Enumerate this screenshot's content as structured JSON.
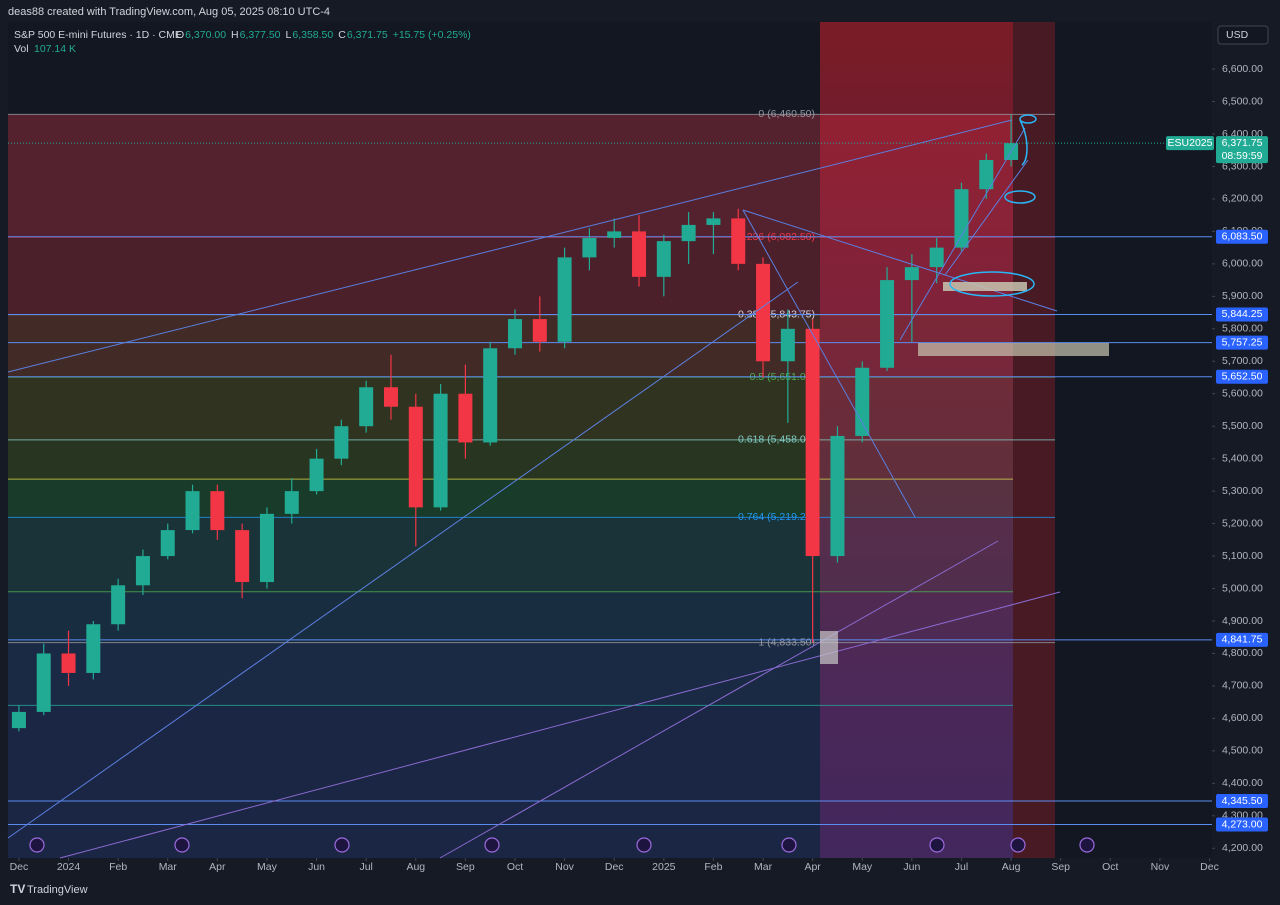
{
  "header": {
    "author_line": "deas88 created with TradingView.com, Aug 05, 2025 08:10 UTC-4",
    "currency": "USD",
    "footer": "TradingView"
  },
  "chart_data": {
    "type": "candlestick",
    "title": "S&P 500 E-mini Futures · 1D · CME",
    "ohlc_legend": [
      {
        "label": "O",
        "value": "6,370.00"
      },
      {
        "label": "H",
        "value": "6,377.50"
      },
      {
        "label": "L",
        "value": "6,358.50"
      },
      {
        "label": "C",
        "value": "6,371.75"
      }
    ],
    "change": "+15.75 (+0.25%)",
    "volume_label": "Vol",
    "volume_value": "107.14 K",
    "x": [
      0,
      0.5,
      1,
      1.5,
      2,
      2.5,
      3,
      3.5,
      4,
      4.5,
      5,
      5.5,
      6,
      6.5,
      7,
      7.5,
      8,
      8.5,
      9,
      9.5,
      10,
      10.5,
      11,
      11.5,
      12,
      12.5,
      13,
      13.5,
      14,
      14.5,
      15,
      15.5,
      16,
      16.5,
      17,
      17.5,
      18,
      18.5,
      19,
      19.5,
      20
    ],
    "open": [
      4570,
      4620,
      4800,
      4740,
      4890,
      5010,
      5100,
      5180,
      5300,
      5180,
      5020,
      5230,
      5300,
      5400,
      5500,
      5620,
      5560,
      5250,
      5600,
      5450,
      5740,
      5830,
      5760,
      6020,
      6080,
      6100,
      5960,
      6070,
      6120,
      6140,
      6000,
      5700,
      5800,
      5100,
      5470,
      5680,
      5950,
      5990,
      6050,
      6230,
      6320
    ],
    "high": [
      4640,
      4830,
      4870,
      4900,
      5030,
      5120,
      5200,
      5320,
      5320,
      5200,
      5250,
      5340,
      5430,
      5520,
      5640,
      5720,
      5600,
      5630,
      5690,
      5760,
      5860,
      5900,
      6050,
      6110,
      6140,
      6150,
      6090,
      6160,
      6160,
      6170,
      6020,
      5860,
      5830,
      5500,
      5700,
      5990,
      6030,
      6080,
      6250,
      6340,
      6460.5
    ],
    "low": [
      4560,
      4610,
      4700,
      4720,
      4870,
      4980,
      5090,
      5170,
      5150,
      4970,
      5000,
      5200,
      5290,
      5380,
      5480,
      5520,
      5130,
      5240,
      5400,
      5440,
      5720,
      5730,
      5740,
      5980,
      6050,
      5930,
      5900,
      6000,
      6030,
      5980,
      5650,
      5510,
      4833.5,
      5080,
      5450,
      5670,
      5760,
      5940,
      6040,
      6200,
      6300
    ],
    "close": [
      4620,
      4800,
      4740,
      4890,
      5010,
      5100,
      5180,
      5300,
      5180,
      5020,
      5230,
      5300,
      5400,
      5500,
      5620,
      5560,
      5250,
      5600,
      5450,
      5740,
      5830,
      5760,
      6020,
      6080,
      6100,
      5960,
      6070,
      6120,
      6140,
      6000,
      5700,
      5800,
      5100,
      5470,
      5680,
      5950,
      5990,
      6050,
      6230,
      6320,
      6371.75
    ],
    "up_color": "#22ab94",
    "down_color": "#f23645",
    "xlim": [
      -0.22,
      24.05
    ],
    "xticks": [
      {
        "value": 0,
        "label": "Dec"
      },
      {
        "value": 1,
        "label": "2024"
      },
      {
        "value": 2,
        "label": "Feb"
      },
      {
        "value": 3,
        "label": "Mar"
      },
      {
        "value": 4,
        "label": "Apr"
      },
      {
        "value": 5,
        "label": "May"
      },
      {
        "value": 6,
        "label": "Jun"
      },
      {
        "value": 7,
        "label": "Jul"
      },
      {
        "value": 8,
        "label": "Aug"
      },
      {
        "value": 9,
        "label": "Sep"
      },
      {
        "value": 10,
        "label": "Oct"
      },
      {
        "value": 11,
        "label": "Nov"
      },
      {
        "value": 12,
        "label": "Dec"
      },
      {
        "value": 13,
        "label": "2025"
      },
      {
        "value": 14,
        "label": "Feb"
      },
      {
        "value": 15,
        "label": "Mar"
      },
      {
        "value": 16,
        "label": "Apr"
      },
      {
        "value": 17,
        "label": "May"
      },
      {
        "value": 18,
        "label": "Jun"
      },
      {
        "value": 19,
        "label": "Jul"
      },
      {
        "value": 20,
        "label": "Aug"
      },
      {
        "value": 21,
        "label": "Sep"
      },
      {
        "value": 22,
        "label": "Oct"
      },
      {
        "value": 23,
        "label": "Nov"
      },
      {
        "value": 24,
        "label": "Dec"
      }
    ],
    "ylim": [
      4170,
      6745
    ],
    "yticks": [
      {
        "value": 4200,
        "label": "4,200.00"
      },
      {
        "value": 4300,
        "label": "4,300.00"
      },
      {
        "value": 4400,
        "label": "4,400.00"
      },
      {
        "value": 4500,
        "label": "4,500.00"
      },
      {
        "value": 4600,
        "label": "4,600.00"
      },
      {
        "value": 4700,
        "label": "4,700.00"
      },
      {
        "value": 4800,
        "label": "4,800.00"
      },
      {
        "value": 4900,
        "label": "4,900.00"
      },
      {
        "value": 5000,
        "label": "5,000.00"
      },
      {
        "value": 5100,
        "label": "5,100.00"
      },
      {
        "value": 5200,
        "label": "5,200.00"
      },
      {
        "value": 5300,
        "label": "5,300.00"
      },
      {
        "value": 5400,
        "label": "5,400.00"
      },
      {
        "value": 5500,
        "label": "5,500.00"
      },
      {
        "value": 5600,
        "label": "5,600.00"
      },
      {
        "value": 5700,
        "label": "5,700.00"
      },
      {
        "value": 5800,
        "label": "5,800.00"
      },
      {
        "value": 5900,
        "label": "5,900.00"
      },
      {
        "value": 6000,
        "label": "6,000.00"
      },
      {
        "value": 6100,
        "label": "6,100.00"
      },
      {
        "value": 6200,
        "label": "6,200.00"
      },
      {
        "value": 6300,
        "label": "6,300.00"
      },
      {
        "value": 6400,
        "label": "6,400.00"
      },
      {
        "value": 6500,
        "label": "6,500.00"
      },
      {
        "value": 6600,
        "label": "6,600.00"
      }
    ],
    "fib_levels": [
      {
        "value": 6460.5,
        "label": "0 (6,460.50)"
      },
      {
        "value": 6082.5,
        "label": "0.236 (6,082.50)"
      },
      {
        "value": 5843.75,
        "label": "0.382 (5,843.75)"
      },
      {
        "value": 5651,
        "label": "0.5 (5,651.00)"
      },
      {
        "value": 5458,
        "label": "0.618 (5,458.00)"
      },
      {
        "value": 5219.25,
        "label": "0.764 (5,219.25)"
      },
      {
        "value": 4833.5,
        "label": "1 (4,833.50)"
      }
    ],
    "extra_levels": [
      5337,
      4990,
      4640
    ],
    "price_lines": [
      {
        "value": 6083.5,
        "label": "6,083.50"
      },
      {
        "value": 5844.25,
        "label": "5,844.25"
      },
      {
        "value": 5757.25,
        "label": "5,757.25"
      },
      {
        "value": 5652.5,
        "label": "5,652.50"
      },
      {
        "value": 4841.75,
        "label": "4,841.75"
      },
      {
        "value": 4345.5,
        "label": "4,345.50"
      },
      {
        "value": 4273,
        "label": "4,273.00"
      }
    ],
    "last_price": {
      "symbol": "ESU2025",
      "value": 6371.75,
      "label": "6,371.75",
      "countdown": "08:59:59"
    }
  }
}
